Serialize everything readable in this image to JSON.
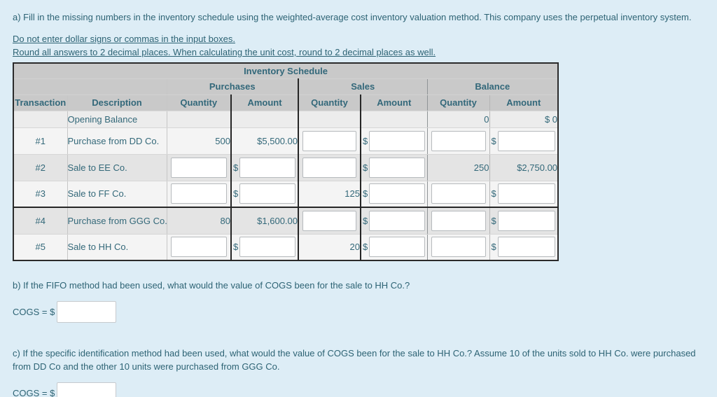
{
  "currency_symbol": "$",
  "instructions": {
    "line_a": "a) Fill in the missing numbers in the inventory schedule using the weighted-average cost inventory valuation method. This company uses the perpetual inventory system.",
    "note_1": "Do not enter dollar signs or commas in the input boxes.",
    "note_2": "Round all answers to 2 decimal places. When calculating the unit cost, round to 2 decimal places as well."
  },
  "table": {
    "title": "Inventory Schedule",
    "group_headers": [
      "Purchases",
      "Sales",
      "Balance"
    ],
    "column_headers": [
      "Transaction",
      "Description",
      "Quantity",
      "Amount",
      "Quantity",
      "Amount",
      "Quantity",
      "Amount"
    ],
    "rows": [
      {
        "transaction": "",
        "description": "Opening Balance",
        "cells": [
          {
            "type": "blank",
            "value": ""
          },
          {
            "type": "blank",
            "value": ""
          },
          {
            "type": "blank",
            "value": ""
          },
          {
            "type": "blank",
            "value": ""
          },
          {
            "type": "text",
            "value": "0"
          },
          {
            "type": "text",
            "value": "$ 0"
          }
        ]
      },
      {
        "transaction": "#1",
        "description": "Purchase from DD Co.",
        "cells": [
          {
            "type": "text",
            "value": "500"
          },
          {
            "type": "text",
            "value": "$5,500.00"
          },
          {
            "type": "input",
            "value": ""
          },
          {
            "type": "dollar_input",
            "value": ""
          },
          {
            "type": "input",
            "value": ""
          },
          {
            "type": "dollar_input",
            "value": ""
          }
        ]
      },
      {
        "transaction": "#2",
        "description": "Sale to EE Co.",
        "cells": [
          {
            "type": "input",
            "value": ""
          },
          {
            "type": "dollar_input",
            "value": ""
          },
          {
            "type": "input",
            "value": ""
          },
          {
            "type": "dollar_input",
            "value": ""
          },
          {
            "type": "text",
            "value": "250"
          },
          {
            "type": "text",
            "value": "$2,750.00"
          }
        ]
      },
      {
        "transaction": "#3",
        "description": "Sale to FF Co.",
        "cells": [
          {
            "type": "input",
            "value": ""
          },
          {
            "type": "dollar_input",
            "value": ""
          },
          {
            "type": "text",
            "value": "125"
          },
          {
            "type": "dollar_input",
            "value": ""
          },
          {
            "type": "input",
            "value": ""
          },
          {
            "type": "dollar_input",
            "value": ""
          }
        ]
      },
      {
        "transaction": "#4",
        "description": "Purchase from GGG Co.",
        "cells": [
          {
            "type": "text",
            "value": "80"
          },
          {
            "type": "text",
            "value": "$1,600.00"
          },
          {
            "type": "input",
            "value": ""
          },
          {
            "type": "dollar_input",
            "value": ""
          },
          {
            "type": "input",
            "value": ""
          },
          {
            "type": "dollar_input",
            "value": ""
          }
        ]
      },
      {
        "transaction": "#5",
        "description": "Sale to HH Co.",
        "cells": [
          {
            "type": "input",
            "value": ""
          },
          {
            "type": "dollar_input",
            "value": ""
          },
          {
            "type": "text",
            "value": "20"
          },
          {
            "type": "dollar_input",
            "value": ""
          },
          {
            "type": "input",
            "value": ""
          },
          {
            "type": "dollar_input",
            "value": ""
          }
        ]
      }
    ]
  },
  "question_b": {
    "prompt": "b) If the FIFO method had been used, what would the value of COGS been for the sale to HH Co.?",
    "cogs_label": "COGS = $",
    "cogs_value": ""
  },
  "question_c": {
    "prompt": "c) If the specific identification method had been used, what would the value of COGS been for the sale to HH Co.? Assume 10 of the units sold to HH Co. were purchased from DD Co and the other 10 units were purchased from GGG Co.",
    "cogs_label": "COGS = $",
    "cogs_value": ""
  }
}
